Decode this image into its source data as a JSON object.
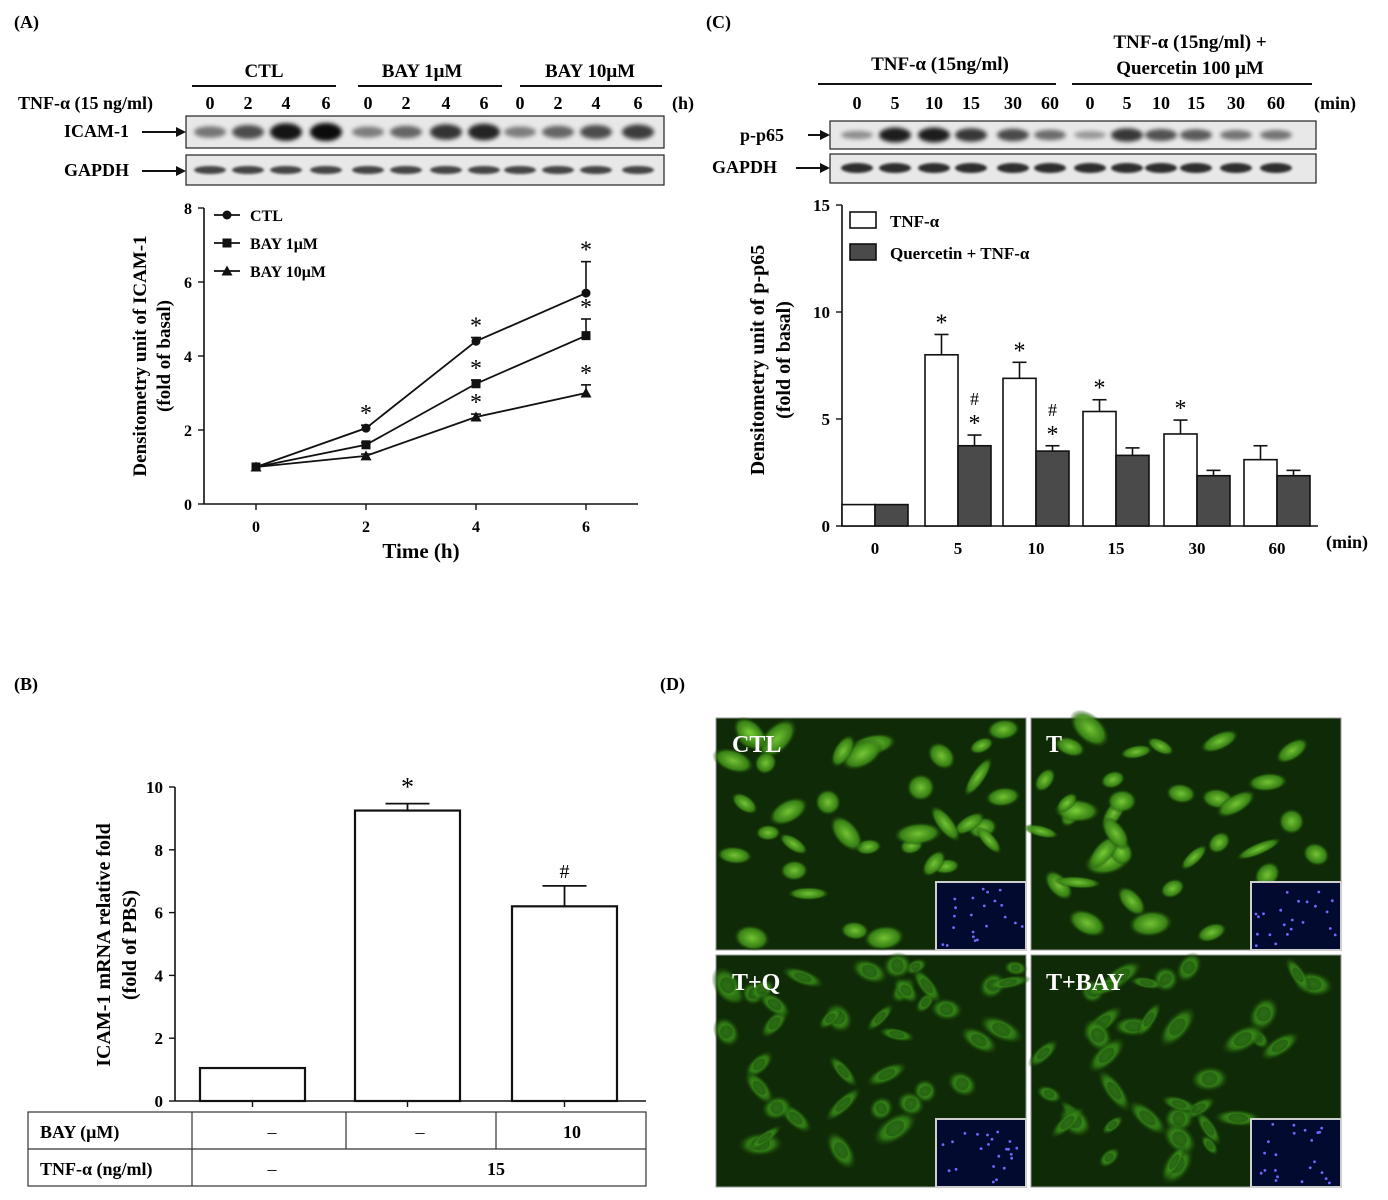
{
  "panels": {
    "a": {
      "label": "(A)",
      "groups": [
        "CTL",
        "BAY 1μM",
        "BAY 10μM"
      ],
      "treatment_label": "TNF-α (15 ng/ml)",
      "time_points": [
        "0",
        "2",
        "4",
        "6",
        "0",
        "2",
        "4",
        "6",
        "0",
        "2",
        "4",
        "6"
      ],
      "time_unit": "(h)",
      "blot_labels": [
        "ICAM-1",
        "GAPDH"
      ]
    },
    "b": {
      "label": "(B)",
      "table": {
        "row1_label": "BAY (μM)",
        "row1": [
          "–",
          "–",
          "10"
        ],
        "row2_label": "TNF-α (ng/ml)",
        "row2": [
          "–",
          "15"
        ]
      }
    },
    "c": {
      "label": "(C)",
      "group1": "TNF-α (15ng/ml)",
      "group2_line1": "TNF-α (15ng/ml) +",
      "group2_line2": "Quercetin 100 μM",
      "time_points": [
        "0",
        "5",
        "10",
        "15",
        "30",
        "60",
        "0",
        "5",
        "10",
        "15",
        "30",
        "60"
      ],
      "time_unit": "(min)",
      "blot_labels": [
        "p-p65",
        "GAPDH"
      ]
    },
    "d": {
      "label": "(D)",
      "image_labels": [
        "CTL",
        "T",
        "T+Q",
        "T+BAY"
      ]
    }
  },
  "chart_data": [
    {
      "type": "line",
      "xlabel": "Time (h)",
      "ylabel": "Densitometry unit of ICAM-1",
      "ylabel2": "(fold of basal)",
      "x": [
        0,
        2,
        4,
        6
      ],
      "xticks": [
        "0",
        "2",
        "4",
        "6"
      ],
      "ylim": [
        0,
        8
      ],
      "yticks": [
        "0",
        "2",
        "4",
        "6",
        "8"
      ],
      "series": [
        {
          "name": "CTL",
          "marker": "circle",
          "values": [
            1.0,
            2.05,
            4.4,
            5.7
          ],
          "err": [
            0,
            0.08,
            0.1,
            0.85
          ],
          "sig": [
            "",
            "*",
            "*",
            "*"
          ]
        },
        {
          "name": "BAY 1μM",
          "marker": "square",
          "values": [
            1.0,
            1.6,
            3.25,
            4.55
          ],
          "err": [
            0,
            0.06,
            0.1,
            0.45
          ],
          "sig": [
            "",
            "",
            "*",
            "*"
          ]
        },
        {
          "name": "BAY 10μM",
          "marker": "triangle",
          "values": [
            1.0,
            1.3,
            2.35,
            3.0
          ],
          "err": [
            0,
            0.05,
            0.08,
            0.22
          ],
          "sig": [
            "",
            "",
            "*",
            "*"
          ]
        }
      ]
    },
    {
      "type": "bar",
      "ylabel": "ICAM-1 mRNA relative fold",
      "ylabel2": "(fold of PBS)",
      "ylim": [
        0,
        10
      ],
      "yticks": [
        "0",
        "2",
        "4",
        "6",
        "8",
        "10"
      ],
      "values": [
        1.05,
        9.25,
        6.2
      ],
      "err": [
        0,
        0.22,
        0.65
      ],
      "sig": [
        "",
        "*",
        "#"
      ]
    },
    {
      "type": "bar",
      "ylabel": "Densitometry unit of p-p65",
      "ylabel2": "(fold of basal)",
      "categories": [
        "0",
        "5",
        "10",
        "15",
        "30",
        "60"
      ],
      "xunit": "(min)",
      "ylim": [
        0,
        15
      ],
      "yticks": [
        "0",
        "5",
        "10",
        "15"
      ],
      "series": [
        {
          "name": "TNF-α",
          "values": [
            1.0,
            8.0,
            6.9,
            5.35,
            4.3,
            3.1
          ],
          "err": [
            0,
            0.95,
            0.75,
            0.55,
            0.65,
            0.65
          ],
          "sig": [
            "",
            "*",
            "*",
            "*",
            "*",
            ""
          ]
        },
        {
          "name": "Quercetin + TNF-α",
          "values": [
            1.0,
            3.75,
            3.5,
            3.3,
            2.35,
            2.35
          ],
          "err": [
            0,
            0.5,
            0.25,
            0.35,
            0.25,
            0.25
          ],
          "sig": [
            "",
            "#*",
            "#*",
            "",
            "",
            ""
          ]
        }
      ]
    }
  ]
}
